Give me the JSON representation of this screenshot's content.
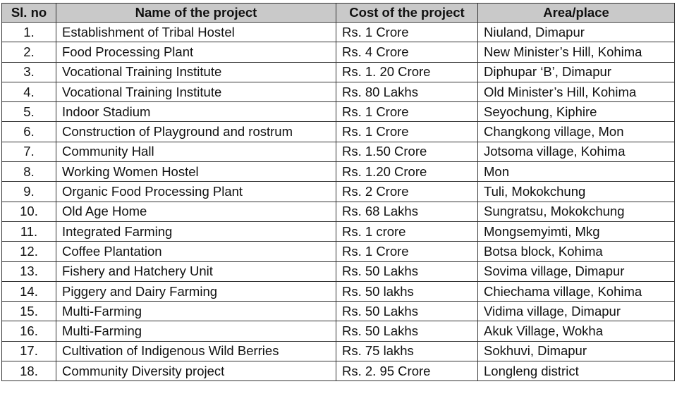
{
  "table": {
    "header": [
      "Sl. no",
      "Name of the project",
      "Cost of the project",
      "Area/place"
    ],
    "rows": [
      [
        "1.",
        "Establishment of Tribal Hostel",
        "Rs. 1 Crore",
        "Niuland, Dimapur"
      ],
      [
        "2.",
        "Food Processing Plant",
        "Rs. 4 Crore",
        "New Minister’s Hill, Kohima"
      ],
      [
        "3.",
        "Vocational Training Institute",
        "Rs. 1. 20 Crore",
        "Diphupar ‘B’, Dimapur"
      ],
      [
        "4.",
        "Vocational Training Institute",
        "Rs. 80 Lakhs",
        "Old Minister’s Hill, Kohima"
      ],
      [
        "5.",
        "Indoor Stadium",
        "Rs. 1 Crore",
        "Seyochung, Kiphire"
      ],
      [
        "6.",
        "Construction of Playground and rostrum",
        "Rs. 1 Crore",
        "Changkong village, Mon"
      ],
      [
        "7.",
        "Community Hall",
        "Rs. 1.50 Crore",
        "Jotsoma village, Kohima"
      ],
      [
        "8.",
        "Working Women Hostel",
        "Rs. 1.20 Crore",
        "Mon"
      ],
      [
        "9.",
        "Organic Food Processing Plant",
        "Rs. 2 Crore",
        "Tuli, Mokokchung"
      ],
      [
        "10.",
        "Old Age Home",
        "Rs. 68 Lakhs",
        "Sungratsu, Mokokchung"
      ],
      [
        "11.",
        "Integrated Farming",
        "Rs. 1 crore",
        "Mongsemyimti, Mkg"
      ],
      [
        "12.",
        "Coffee Plantation",
        "Rs. 1 Crore",
        "Botsa block, Kohima"
      ],
      [
        "13.",
        "Fishery and Hatchery Unit",
        "Rs. 50 Lakhs",
        "Sovima village, Dimapur"
      ],
      [
        "14.",
        "Piggery and Dairy Farming",
        "Rs. 50 lakhs",
        "Chiechama village, Kohima"
      ],
      [
        "15.",
        "Multi-Farming",
        "Rs. 50 Lakhs",
        "Vidima village, Dimapur"
      ],
      [
        "16.",
        "Multi-Farming",
        "Rs. 50 Lakhs",
        "Akuk Village, Wokha"
      ],
      [
        "17.",
        "Cultivation of Indigenous Wild Berries",
        "Rs. 75 lakhs",
        "Sokhuvi, Dimapur"
      ],
      [
        "18.",
        "Community Diversity project",
        "Rs. 2. 95 Crore",
        "Longleng district"
      ]
    ]
  }
}
